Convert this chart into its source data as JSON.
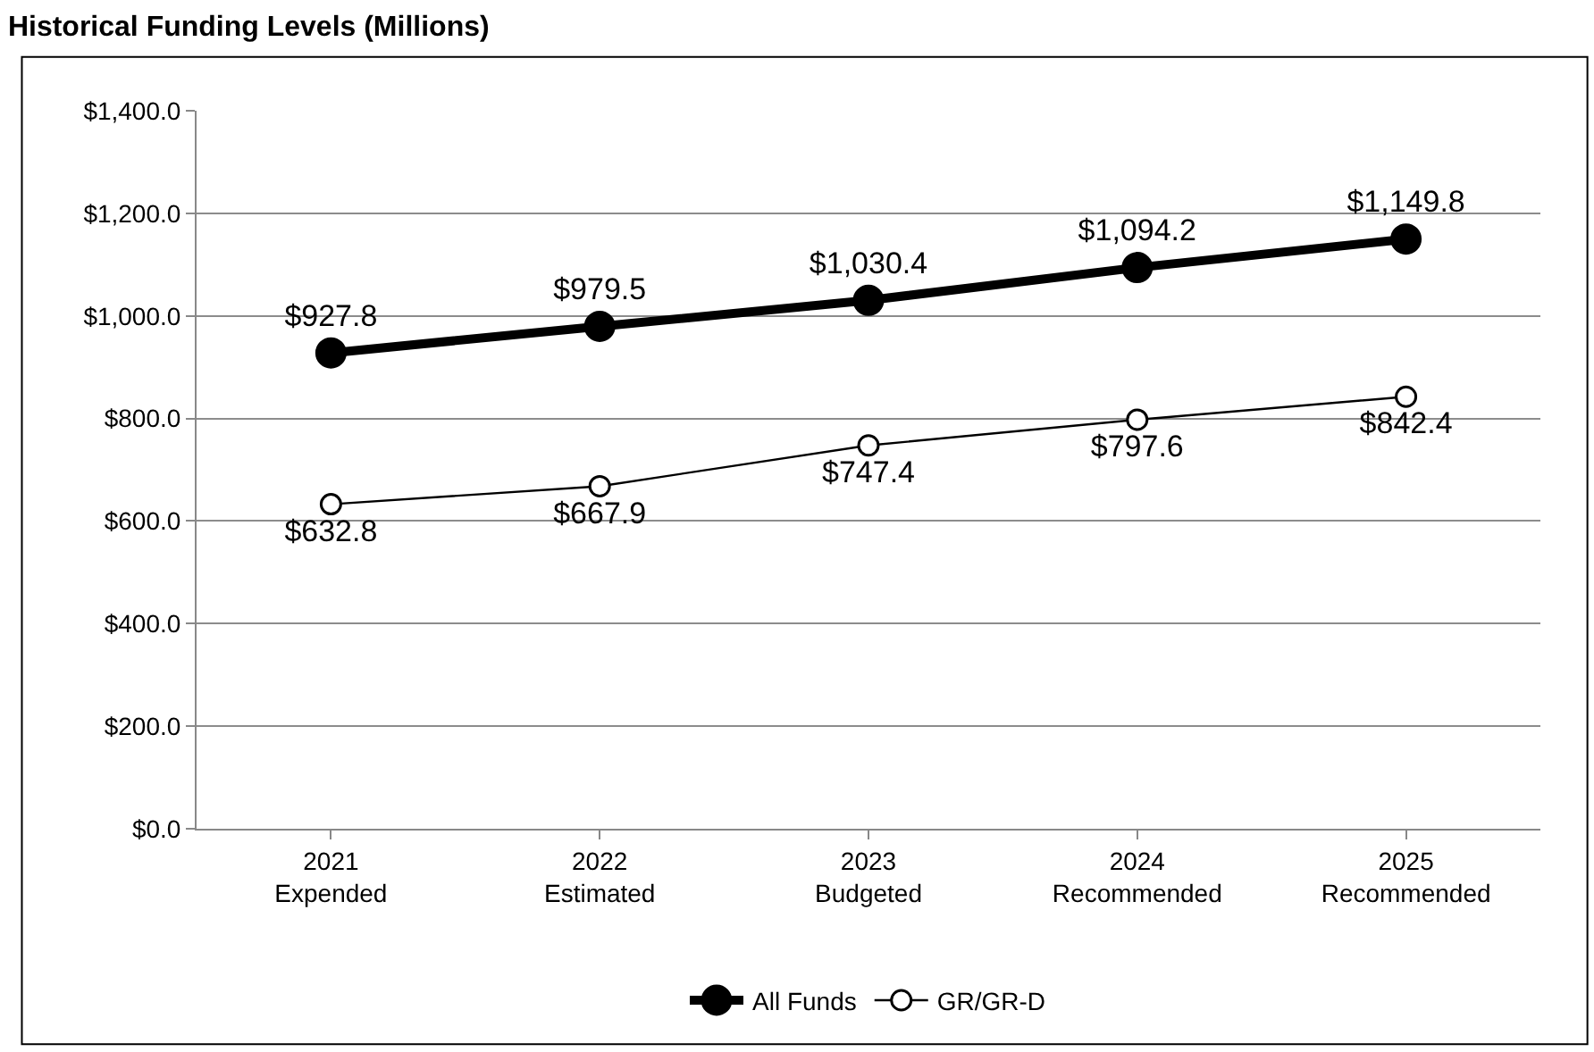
{
  "chart_data": {
    "type": "line",
    "title": "Historical Funding Levels (Millions)",
    "categories": [
      "2021\nExpended",
      "2022\nEstimated",
      "2023\nBudgeted",
      "2024\nRecommended",
      "2025\nRecommended"
    ],
    "series": [
      {
        "name": "All Funds",
        "color": "#000000",
        "values": [
          927.8,
          979.5,
          1030.4,
          1094.2,
          1149.8
        ],
        "value_labels": [
          "$927.8",
          "$979.5",
          "$1,030.4",
          "$1,094.2",
          "$1,149.8"
        ]
      },
      {
        "name": "GR/GR-D",
        "color": "#000000",
        "values": [
          632.8,
          667.9,
          747.4,
          797.6,
          842.4
        ],
        "value_labels": [
          "$632.8",
          "$667.9",
          "$747.4",
          "$797.6",
          "$842.4"
        ]
      }
    ],
    "ylim": [
      0,
      1400
    ],
    "yticks": [
      {
        "value": 0,
        "label": "$0.0"
      },
      {
        "value": 200,
        "label": "$200.0"
      },
      {
        "value": 400,
        "label": "$400.0"
      },
      {
        "value": 600,
        "label": "$600.0"
      },
      {
        "value": 800,
        "label": "$800.0"
      },
      {
        "value": 1000,
        "label": "$1,000.0"
      },
      {
        "value": 1200,
        "label": "$1,200.0"
      },
      {
        "value": 1400,
        "label": "$1,400.0"
      }
    ],
    "grid": "y",
    "legend": "bottom",
    "marker": "circle",
    "line_style": "solid"
  }
}
